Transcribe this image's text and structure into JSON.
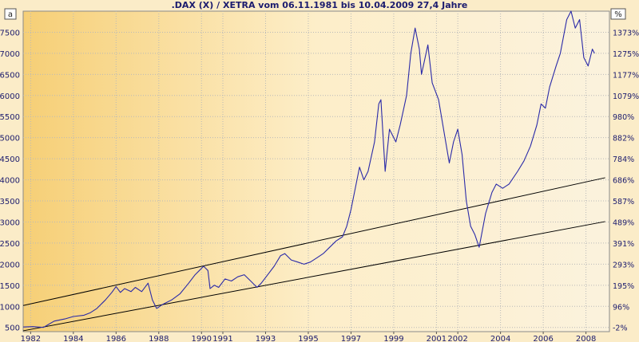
{
  "chart_data": {
    "type": "line",
    "title": ".DAX (X) / XETRA vom 06.11.1981 bis 10.04.2009 27,4 Jahre",
    "left_axis_badge": "a",
    "right_axis_badge": "%",
    "xlabel": "",
    "ylabel": "",
    "xlim": [
      1981.85,
      2009.3
    ],
    "ylim": [
      400,
      8000
    ],
    "grid": true,
    "legend": "none",
    "colors": {
      "series": "#2a2aa8",
      "channel": "#000000",
      "grid": "#b9b9b9",
      "text": "#1b1b6e"
    },
    "x_ticks": [
      {
        "label": "1982",
        "x": 1982.2
      },
      {
        "label": "1984",
        "x": 1984.2
      },
      {
        "label": "1986",
        "x": 1986.2
      },
      {
        "label": "1988",
        "x": 1988.2
      },
      {
        "label": "1990",
        "x": 1990.2
      },
      {
        "label": "1991",
        "x": 1991.2
      },
      {
        "label": "1993",
        "x": 1993.2
      },
      {
        "label": "1995",
        "x": 1995.2
      },
      {
        "label": "1997",
        "x": 1997.2
      },
      {
        "label": "1999",
        "x": 1999.2
      },
      {
        "label": "2001",
        "x": 2001.2
      },
      {
        "label": "2002",
        "x": 2002.2
      },
      {
        "label": "2004",
        "x": 2004.2
      },
      {
        "label": "2006",
        "x": 2006.2
      },
      {
        "label": "2008",
        "x": 2008.2
      }
    ],
    "y_ticks_left": [
      500,
      1000,
      1500,
      2000,
      2500,
      3000,
      3500,
      4000,
      4500,
      5000,
      5500,
      6000,
      6500,
      7000,
      7500
    ],
    "y_ticks_right": [
      {
        "label": "-2%",
        "y": 500
      },
      {
        "label": "96%",
        "y": 1000
      },
      {
        "label": "195%",
        "y": 1500
      },
      {
        "label": "293%",
        "y": 2000
      },
      {
        "label": "391%",
        "y": 2500
      },
      {
        "label": "489%",
        "y": 3000
      },
      {
        "label": "587%",
        "y": 3500
      },
      {
        "label": "686%",
        "y": 4000
      },
      {
        "label": "784%",
        "y": 4500
      },
      {
        "label": "882%",
        "y": 5000
      },
      {
        "label": "980%",
        "y": 5500
      },
      {
        "label": "1079%",
        "y": 6000
      },
      {
        "label": "1177%",
        "y": 6500
      },
      {
        "label": "1275%",
        "y": 7000
      },
      {
        "label": "1373%",
        "y": 7500
      }
    ],
    "series": [
      {
        "points": [
          [
            1981.85,
            510
          ],
          [
            1982.3,
            520
          ],
          [
            1982.8,
            500
          ],
          [
            1983.0,
            560
          ],
          [
            1983.3,
            650
          ],
          [
            1983.8,
            700
          ],
          [
            1984.2,
            760
          ],
          [
            1984.7,
            790
          ],
          [
            1985.0,
            850
          ],
          [
            1985.3,
            950
          ],
          [
            1985.7,
            1150
          ],
          [
            1986.0,
            1330
          ],
          [
            1986.2,
            1470
          ],
          [
            1986.4,
            1330
          ],
          [
            1986.6,
            1420
          ],
          [
            1986.9,
            1350
          ],
          [
            1987.1,
            1450
          ],
          [
            1987.4,
            1350
          ],
          [
            1987.7,
            1550
          ],
          [
            1987.9,
            1150
          ],
          [
            1988.1,
            950
          ],
          [
            1988.4,
            1050
          ],
          [
            1988.8,
            1150
          ],
          [
            1989.2,
            1300
          ],
          [
            1989.6,
            1550
          ],
          [
            1989.9,
            1750
          ],
          [
            1990.1,
            1850
          ],
          [
            1990.3,
            1950
          ],
          [
            1990.5,
            1850
          ],
          [
            1990.6,
            1420
          ],
          [
            1990.8,
            1500
          ],
          [
            1991.0,
            1450
          ],
          [
            1991.3,
            1650
          ],
          [
            1991.6,
            1600
          ],
          [
            1991.9,
            1700
          ],
          [
            1992.2,
            1750
          ],
          [
            1992.5,
            1600
          ],
          [
            1992.8,
            1450
          ],
          [
            1993.0,
            1550
          ],
          [
            1993.3,
            1750
          ],
          [
            1993.6,
            1950
          ],
          [
            1993.9,
            2200
          ],
          [
            1994.1,
            2250
          ],
          [
            1994.4,
            2100
          ],
          [
            1994.7,
            2050
          ],
          [
            1995.0,
            2000
          ],
          [
            1995.3,
            2050
          ],
          [
            1995.6,
            2150
          ],
          [
            1995.9,
            2250
          ],
          [
            1996.2,
            2400
          ],
          [
            1996.5,
            2550
          ],
          [
            1996.8,
            2650
          ],
          [
            1997.0,
            2900
          ],
          [
            1997.2,
            3300
          ],
          [
            1997.4,
            3800
          ],
          [
            1997.6,
            4300
          ],
          [
            1997.8,
            4000
          ],
          [
            1998.0,
            4200
          ],
          [
            1998.3,
            4900
          ],
          [
            1998.5,
            5800
          ],
          [
            1998.6,
            5900
          ],
          [
            1998.8,
            4200
          ],
          [
            1999.0,
            5200
          ],
          [
            1999.3,
            4900
          ],
          [
            1999.5,
            5300
          ],
          [
            1999.8,
            6000
          ],
          [
            2000.0,
            7000
          ],
          [
            2000.2,
            7600
          ],
          [
            2000.4,
            7100
          ],
          [
            2000.5,
            6500
          ],
          [
            2000.8,
            7200
          ],
          [
            2001.0,
            6300
          ],
          [
            2001.3,
            5900
          ],
          [
            2001.6,
            5000
          ],
          [
            2001.8,
            4400
          ],
          [
            2002.0,
            4900
          ],
          [
            2002.2,
            5200
          ],
          [
            2002.4,
            4600
          ],
          [
            2002.6,
            3500
          ],
          [
            2002.8,
            2900
          ],
          [
            2003.0,
            2700
          ],
          [
            2003.2,
            2400
          ],
          [
            2003.5,
            3200
          ],
          [
            2003.8,
            3700
          ],
          [
            2004.0,
            3900
          ],
          [
            2004.3,
            3800
          ],
          [
            2004.6,
            3900
          ],
          [
            2005.0,
            4200
          ],
          [
            2005.3,
            4450
          ],
          [
            2005.6,
            4800
          ],
          [
            2005.9,
            5300
          ],
          [
            2006.1,
            5800
          ],
          [
            2006.3,
            5700
          ],
          [
            2006.5,
            6200
          ],
          [
            2006.8,
            6700
          ],
          [
            2007.0,
            7000
          ],
          [
            2007.3,
            7800
          ],
          [
            2007.5,
            8000
          ],
          [
            2007.7,
            7600
          ],
          [
            2007.9,
            7800
          ],
          [
            2008.1,
            6900
          ],
          [
            2008.3,
            6700
          ],
          [
            2008.5,
            7100
          ],
          [
            2008.6,
            7000
          ]
        ]
      }
    ],
    "channel_lines": [
      {
        "start": [
          1981.85,
          1020
        ],
        "end": [
          2009.1,
          4050
        ]
      },
      {
        "start": [
          1981.85,
          420
        ],
        "end": [
          2009.1,
          3010
        ]
      }
    ]
  }
}
